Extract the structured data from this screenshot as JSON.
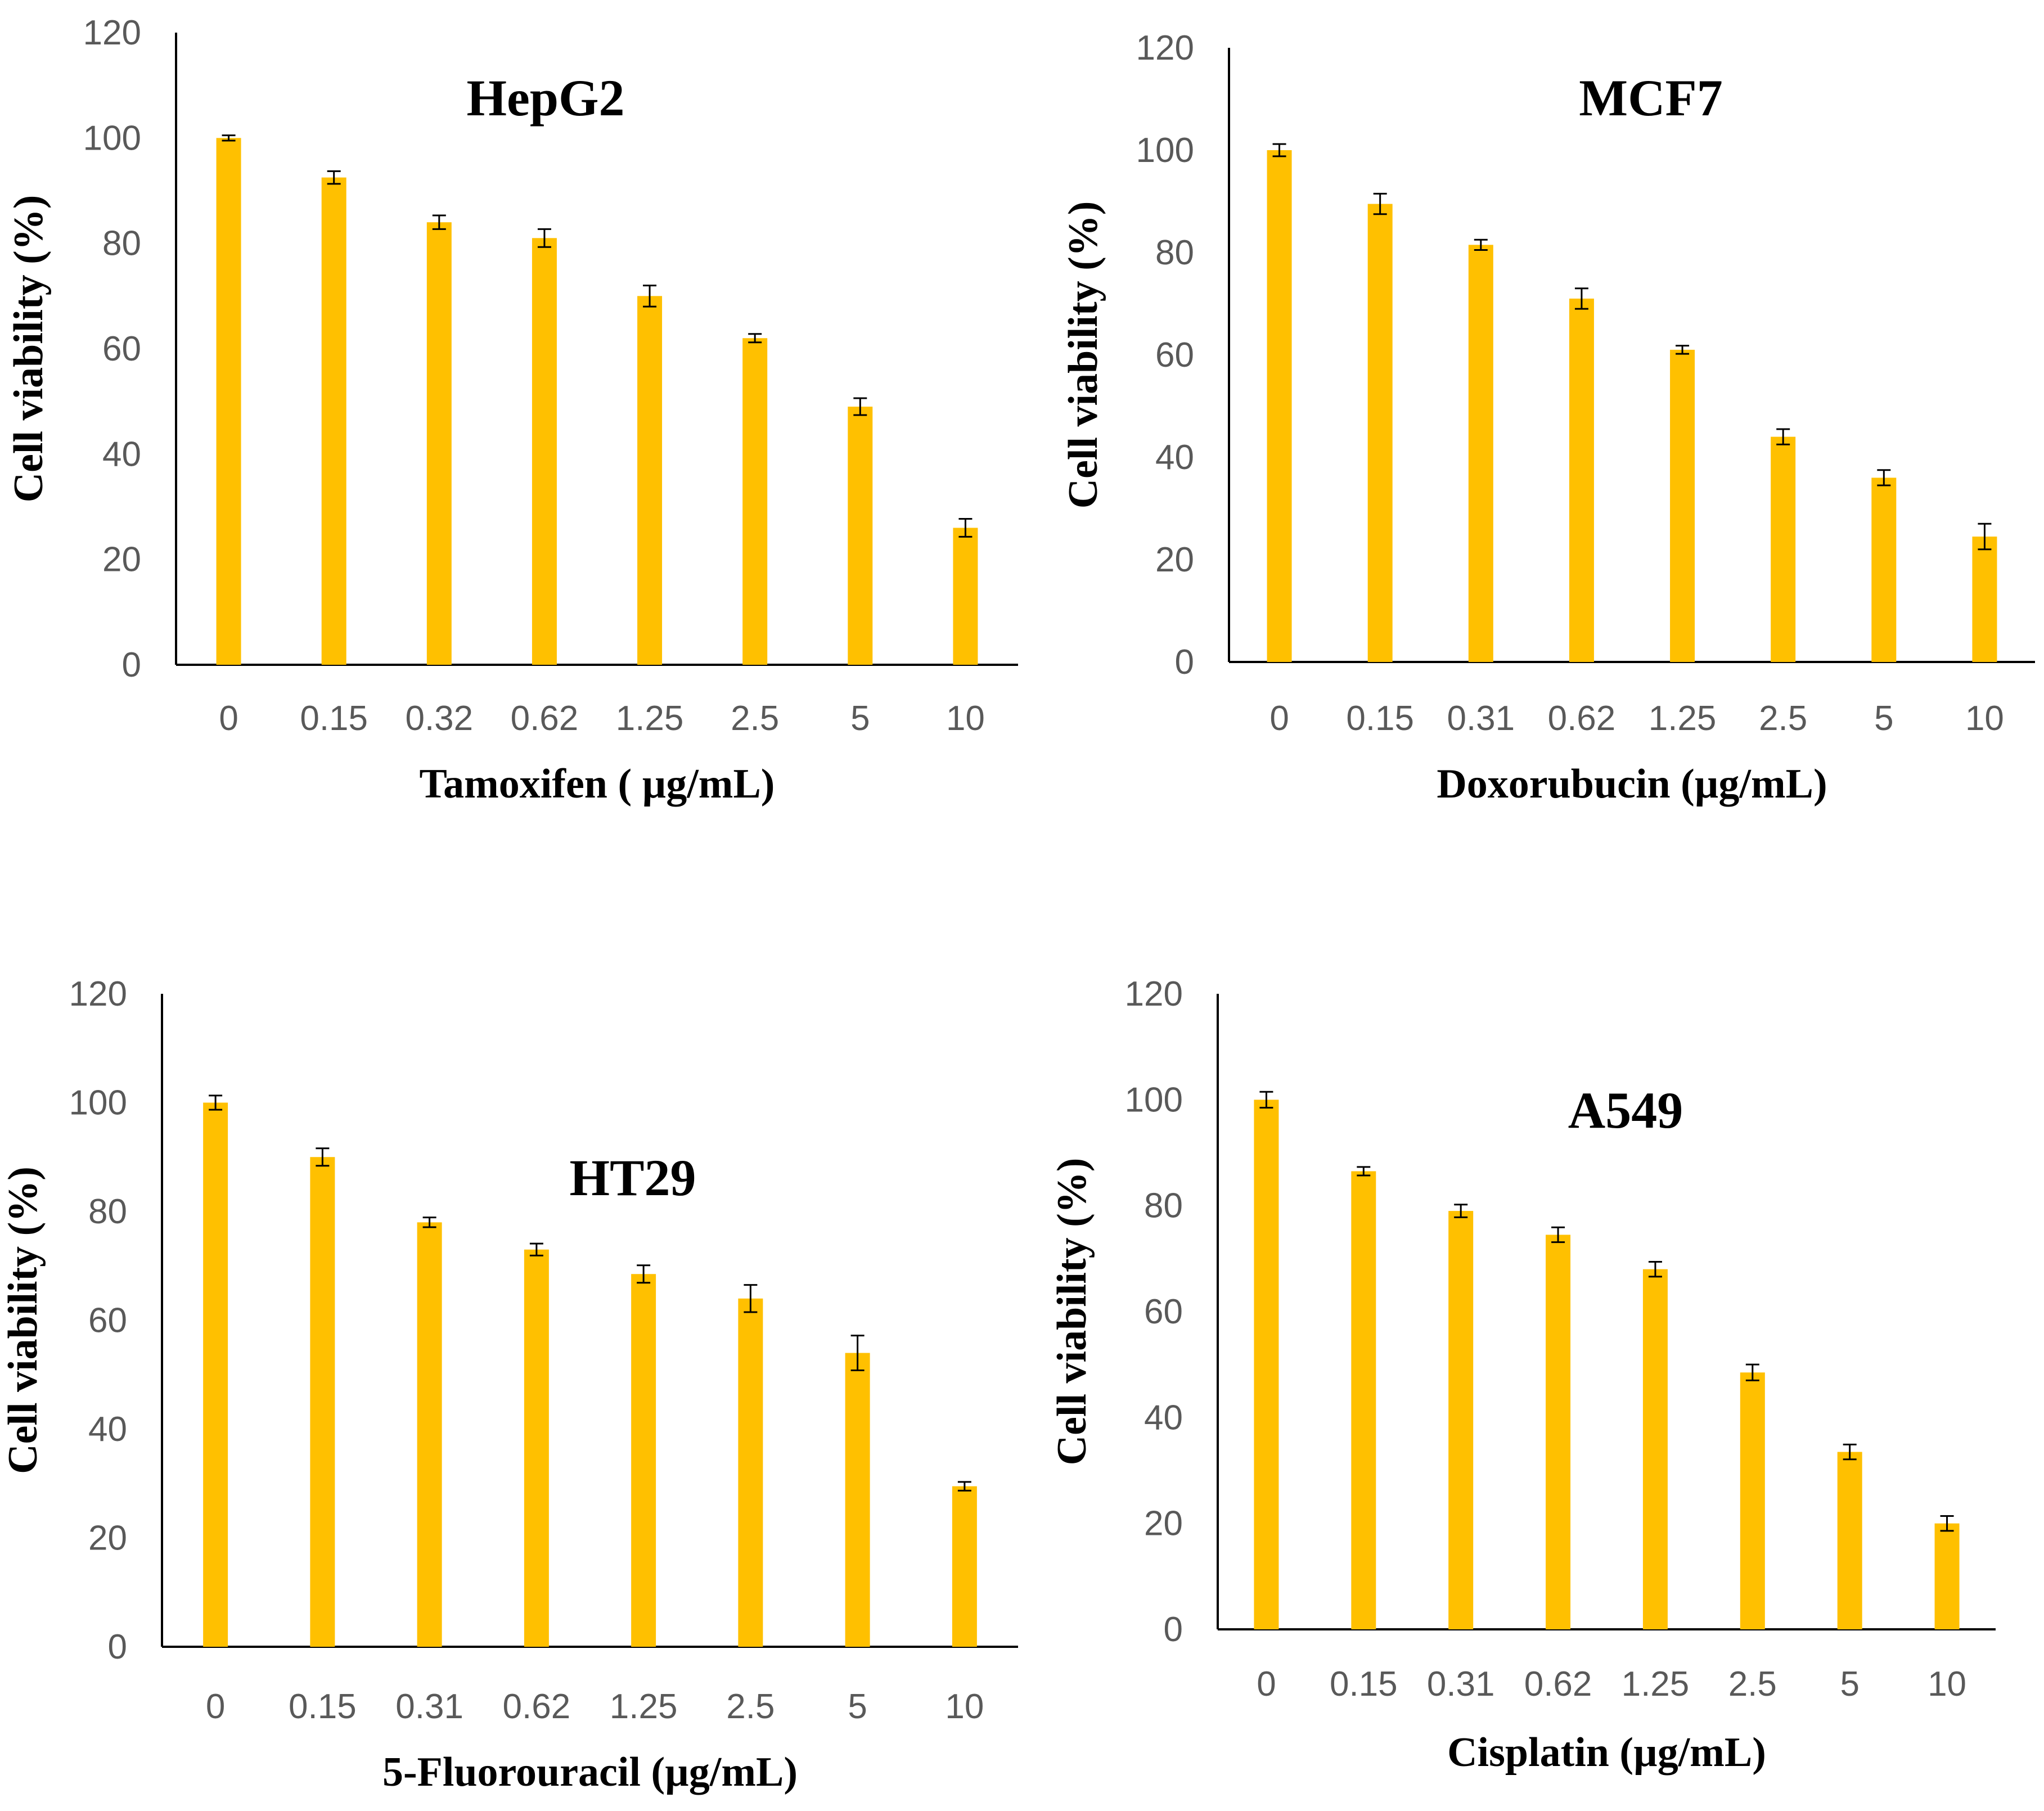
{
  "colors": {
    "bar": "#FFC000",
    "axis": "#000000",
    "error_bar": "#000000",
    "tick_text": "#595959"
  },
  "chart_data": [
    {
      "type": "bar",
      "title": "HepG2",
      "xlabel": "Tamoxifen ( µg/mL)",
      "ylabel": "Cell viability (%)",
      "ylim": [
        0,
        120
      ],
      "yticks": [
        "0",
        "20",
        "40",
        "60",
        "80",
        "100",
        "120"
      ],
      "categories": [
        "0",
        "0.15",
        "0.32",
        "0.62",
        "1.25",
        "2.5",
        "5",
        "10"
      ],
      "values": [
        100,
        92.5,
        84,
        81,
        70,
        62,
        49,
        26
      ],
      "errors": [
        0.5,
        1.2,
        1.3,
        1.7,
        2.0,
        0.8,
        1.6,
        1.7
      ],
      "title_position": "top-center"
    },
    {
      "type": "bar",
      "title": "MCF7",
      "xlabel": "Doxorubucin (µg/mL)",
      "ylabel": "Cell viability (%)",
      "ylim": [
        0,
        120
      ],
      "yticks": [
        "0",
        "20",
        "40",
        "60",
        "80",
        "100",
        "120"
      ],
      "categories": [
        "0",
        "0.15",
        "0.31",
        "0.62",
        "1.25",
        "2.5",
        "5",
        "10"
      ],
      "values": [
        100,
        89.5,
        81.5,
        71,
        61,
        44,
        36,
        24.5
      ],
      "errors": [
        1.2,
        2.0,
        1.0,
        2.0,
        0.8,
        1.5,
        1.5,
        2.5
      ],
      "title_position": "top-center"
    },
    {
      "type": "bar",
      "title": "HT29",
      "xlabel": "5-Fluorouracil (µg/mL)",
      "ylabel": "Cell viability (%)",
      "ylim": [
        0,
        120
      ],
      "yticks": [
        "0",
        "20",
        "40",
        "60",
        "80",
        "100",
        "120"
      ],
      "categories": [
        "0",
        "0.15",
        "0.31",
        "0.62",
        "1.25",
        "2.5",
        "5",
        "10"
      ],
      "values": [
        100,
        90,
        78,
        73,
        68.5,
        64,
        54,
        29.5
      ],
      "errors": [
        1.3,
        1.6,
        0.9,
        1.1,
        1.6,
        2.5,
        3.2,
        0.8
      ],
      "title_position": "middle-right"
    },
    {
      "type": "bar",
      "title": "A549",
      "xlabel": "Cisplatin (µg/mL)",
      "ylabel": "Cell viability (%)",
      "ylim": [
        0,
        120
      ],
      "yticks": [
        "0",
        "20",
        "40",
        "60",
        "80",
        "100",
        "120"
      ],
      "categories": [
        "0",
        "0.15",
        "0.31",
        "0.62",
        "1.25",
        "2.5",
        "5",
        "10"
      ],
      "values": [
        100,
        86.5,
        79,
        74.5,
        68,
        48.5,
        33.5,
        20
      ],
      "errors": [
        1.5,
        0.8,
        1.2,
        1.4,
        1.4,
        1.5,
        1.4,
        1.4
      ],
      "title_position": "top-center"
    }
  ]
}
